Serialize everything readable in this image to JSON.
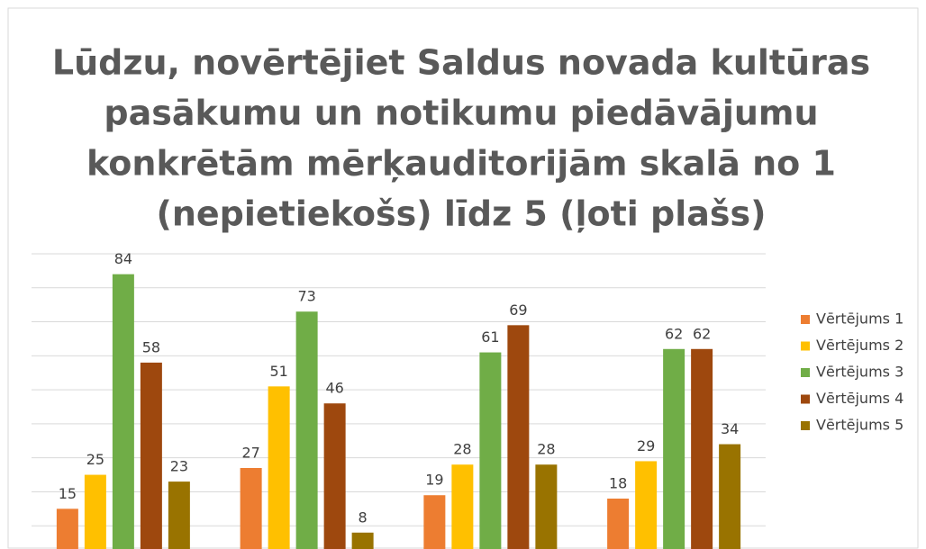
{
  "chart_data": {
    "type": "bar",
    "title": [
      "Lūdzu, novērtējiet Saldus novada kultūras",
      "pasākumu un notikumu piedāvājumu",
      "konkrētām mērķauditorijām skalā no 1",
      "(nepietiekošs) līdz 5 (ļoti plašs)"
    ],
    "categories": [
      null,
      null,
      null,
      null
    ],
    "series": [
      {
        "name": "Vērtējums 1",
        "color": "#ED7D31",
        "values": [
          15,
          27,
          19,
          18
        ]
      },
      {
        "name": "Vērtējums 2",
        "color": "#FFC000",
        "values": [
          25,
          51,
          28,
          29
        ]
      },
      {
        "name": "Vērtējums 3",
        "color": "#70AD47",
        "values": [
          84,
          73,
          61,
          62
        ]
      },
      {
        "name": "Vērtējums 4",
        "color": "#9E480E",
        "values": [
          58,
          46,
          69,
          62
        ]
      },
      {
        "name": "Vērtējums 5",
        "color": "#997300",
        "values": [
          23,
          8,
          28,
          34
        ]
      }
    ],
    "ylim": [
      0,
      90
    ],
    "yticks": [
      0,
      10,
      20,
      30,
      40,
      50,
      60,
      70,
      80,
      90
    ],
    "grid": true,
    "legend": "right"
  }
}
